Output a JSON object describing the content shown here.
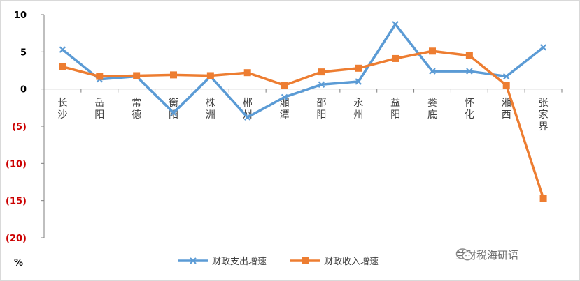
{
  "watermark": {
    "text": "兰财税海研语",
    "icon": "wechat-icon"
  },
  "colors": {
    "expenditure": "#5B9BD5",
    "revenue": "#ED7D31",
    "axis": "#7f7f7f",
    "negative_tick": "#cc0000"
  },
  "chart_data": {
    "type": "line",
    "categories": [
      "长沙",
      "岳阳",
      "常德",
      "衡阳",
      "株洲",
      "郴州",
      "湘潭",
      "邵阳",
      "永州",
      "益阳",
      "娄底",
      "怀化",
      "湘西",
      "张家界"
    ],
    "series": [
      {
        "name": "财政支出增速",
        "marker": "x",
        "values": [
          5.3,
          1.3,
          1.7,
          -3.2,
          1.7,
          -3.8,
          -1.1,
          0.6,
          1.0,
          8.7,
          2.4,
          2.4,
          1.7,
          5.6
        ]
      },
      {
        "name": "财政收入增速",
        "marker": "square",
        "values": [
          3.0,
          1.7,
          1.8,
          1.9,
          1.8,
          2.2,
          0.5,
          2.3,
          2.8,
          4.1,
          5.1,
          4.5,
          0.5,
          -14.7
        ]
      }
    ],
    "ylim": [
      -20,
      10
    ],
    "yticks": [
      10,
      5,
      0,
      -5,
      -10,
      -15,
      -20
    ],
    "ytick_labels": [
      "10",
      "5",
      "0",
      "(5)",
      "(10)",
      "(15)",
      "(20)"
    ],
    "yunit": "%",
    "xlabel": "",
    "ylabel": "",
    "legend": "bottom",
    "grid": false
  }
}
